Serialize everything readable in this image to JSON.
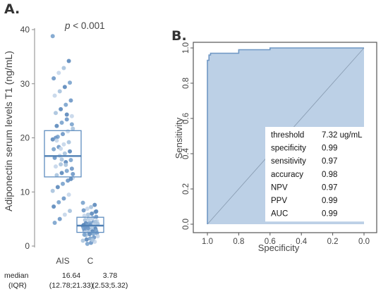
{
  "panel_labels": {
    "a": "A.",
    "b": "B."
  },
  "chart_data": [
    {
      "type": "boxplot",
      "panel": "A",
      "ylabel": "Adiponectin serum levels T1 (ng/mL)",
      "ylim": [
        0,
        40
      ],
      "yticks": [
        0,
        10,
        20,
        30,
        40
      ],
      "categories": [
        "AIS",
        "C"
      ],
      "annotation": {
        "prefix": "p",
        "text": " < 0.001"
      },
      "boxes": [
        {
          "name": "AIS",
          "q1": 12.78,
          "median": 16.64,
          "q3": 21.33
        },
        {
          "name": "C",
          "q1": 2.53,
          "median": 3.78,
          "q3": 5.32
        }
      ],
      "points": {
        "AIS": [
          38.8,
          34.2,
          32.9,
          32.0,
          31.0,
          30.2,
          29.4,
          28.6,
          27.8,
          26.9,
          26.1,
          25.3,
          24.6,
          24.0,
          23.4,
          22.8,
          22.2,
          21.7,
          21.2,
          20.7,
          20.2,
          19.7,
          19.2,
          18.8,
          18.3,
          17.9,
          17.5,
          17.1,
          16.7,
          16.3,
          15.9,
          15.5,
          15.1,
          14.7,
          14.3,
          13.9,
          13.5,
          13.1,
          12.6,
          12.1,
          11.5,
          10.9,
          10.2,
          9.5,
          8.8,
          8.1,
          7.3,
          6.5,
          5.8,
          5.0,
          4.3,
          12.4,
          15.0,
          18.0,
          20.0,
          22.5,
          24.3,
          16.0,
          19.5,
          13.3
        ],
        "C": [
          8.0,
          7.6,
          7.2,
          6.9,
          6.6,
          6.3,
          6.0,
          5.8,
          5.6,
          5.4,
          5.2,
          5.0,
          4.8,
          4.6,
          4.4,
          4.3,
          4.2,
          4.1,
          4.0,
          3.9,
          3.8,
          3.7,
          3.6,
          3.5,
          3.4,
          3.3,
          3.2,
          3.1,
          3.0,
          2.9,
          2.8,
          2.7,
          2.6,
          2.5,
          2.4,
          2.3,
          2.2,
          2.0,
          1.8,
          1.6,
          1.4,
          1.2,
          1.0,
          0.8,
          0.6,
          0.4,
          3.9,
          4.5,
          5.1,
          3.3,
          2.1,
          6.4,
          1.1,
          4.9,
          3.6
        ]
      },
      "footer": {
        "label_1": "median",
        "label_2": "(IQR)",
        "AIS_median": "16.64",
        "AIS_iqr": "(12.78;21.33)",
        "C_median": "3.78",
        "C_iqr": "(2.53;5.32)"
      }
    },
    {
      "type": "line",
      "panel": "B",
      "xlabel": "Specificity",
      "ylabel": "Sensitivity",
      "xlim": [
        1.0,
        0.0
      ],
      "ylim": [
        0.0,
        1.0
      ],
      "xticks": [
        "1.0",
        "0.8",
        "0.6",
        "0.4",
        "0.2",
        "0.0"
      ],
      "yticks": [
        "0.0",
        "0.2",
        "0.4",
        "0.6",
        "0.8",
        "1.0"
      ],
      "roc_curve": {
        "specificity": [
          1.0,
          1.0,
          0.99,
          0.99,
          0.98,
          0.98,
          0.8,
          0.8,
          0.6,
          0.6,
          0.0
        ],
        "sensitivity": [
          0.0,
          0.93,
          0.93,
          0.96,
          0.96,
          0.97,
          0.97,
          0.99,
          0.99,
          1.0,
          1.0
        ]
      },
      "stats_table": [
        {
          "label": "threshold",
          "value": "7.32 ug/mL"
        },
        {
          "label": "specificity",
          "value": "0.99"
        },
        {
          "label": "sensitivity",
          "value": "0.97"
        },
        {
          "label": "accuracy",
          "value": "0.98"
        },
        {
          "label": "NPV",
          "value": "0.97"
        },
        {
          "label": "PPV",
          "value": "0.99"
        },
        {
          "label": "AUC",
          "value": "0.99"
        }
      ],
      "colors": {
        "fill": "#bcd0e6",
        "curve": "#6f97c4",
        "diagonal": "#8a9db3"
      }
    }
  ]
}
